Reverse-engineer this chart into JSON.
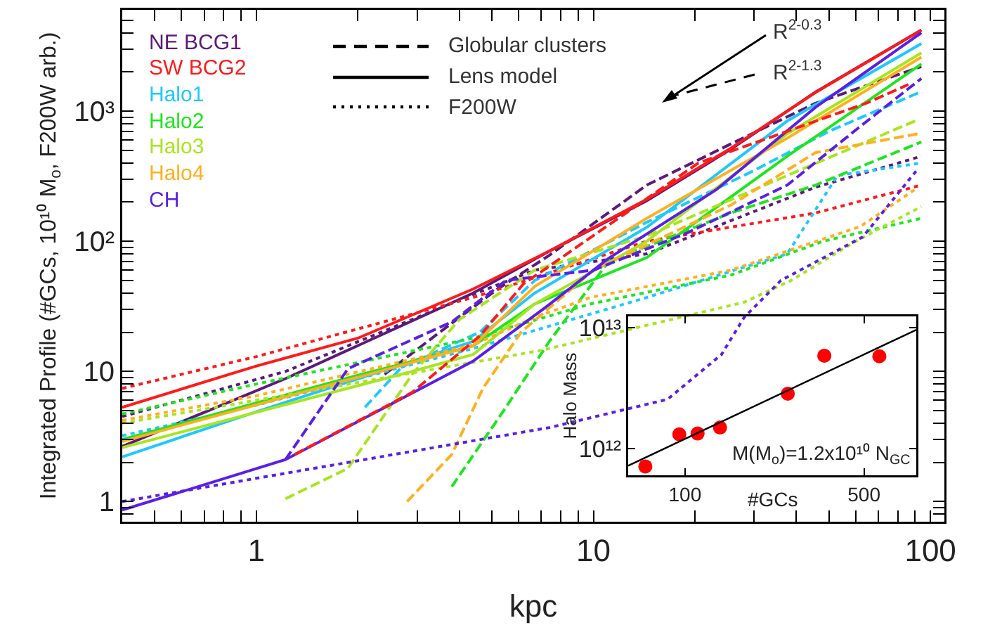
{
  "chart_data": [
    {
      "type": "line",
      "xlabel": "kpc",
      "ylabel": "Integrated Profile (#GCs, 10¹⁰ M$_{o}$, F200W arb.)",
      "log": "xy",
      "grid": false,
      "legend": "top left",
      "xlim": [
        0.4,
        110
      ],
      "ylim": [
        0.7,
        6000
      ],
      "xticks": [
        {
          "value": 0.4,
          "label": null
        },
        {
          "value": 0.5,
          "label": null
        },
        {
          "value": 0.6,
          "label": null
        },
        {
          "value": 0.7,
          "label": null
        },
        {
          "value": 0.8,
          "label": null
        },
        {
          "value": 0.9,
          "label": null
        },
        1,
        {
          "value": 2,
          "label": null
        },
        {
          "value": 3,
          "label": null
        },
        {
          "value": 4,
          "label": null
        },
        {
          "value": 5,
          "label": null
        },
        {
          "value": 6,
          "label": null
        },
        {
          "value": 7,
          "label": null
        },
        {
          "value": 8,
          "label": null
        },
        {
          "value": 9,
          "label": null
        },
        10,
        {
          "value": 20,
          "label": null
        },
        {
          "value": 30,
          "label": null
        },
        {
          "value": 40,
          "label": null
        },
        {
          "value": 50,
          "label": null
        },
        {
          "value": 60,
          "label": null
        },
        {
          "value": 70,
          "label": null
        },
        {
          "value": 80,
          "label": null
        },
        {
          "value": 90,
          "label": null
        },
        100
      ],
      "yticks": [
        {
          "value": 0.8,
          "label": null
        },
        {
          "value": 0.9,
          "label": null
        },
        1,
        {
          "value": 2,
          "label": null
        },
        {
          "value": 3,
          "label": null
        },
        {
          "value": 4,
          "label": null
        },
        {
          "value": 5,
          "label": null
        },
        {
          "value": 6,
          "label": null
        },
        {
          "value": 7,
          "label": null
        },
        {
          "value": 8,
          "label": null
        },
        {
          "value": 9,
          "label": null
        },
        10,
        {
          "value": 20,
          "label": null
        },
        {
          "value": 30,
          "label": null
        },
        {
          "value": 40,
          "label": null
        },
        {
          "value": 50,
          "label": null
        },
        {
          "value": 60,
          "label": null
        },
        {
          "value": 70,
          "label": null
        },
        {
          "value": 80,
          "label": null
        },
        {
          "value": 90,
          "label": null
        },
        {
          "value": 100,
          "label": "10²"
        },
        {
          "value": 200,
          "label": null
        },
        {
          "value": 300,
          "label": null
        },
        {
          "value": 400,
          "label": null
        },
        {
          "value": 500,
          "label": null
        },
        {
          "value": 600,
          "label": null
        },
        {
          "value": 700,
          "label": null
        },
        {
          "value": 800,
          "label": null
        },
        {
          "value": 900,
          "label": null
        },
        {
          "value": 1000,
          "label": "10³"
        },
        {
          "value": 2000,
          "label": null
        },
        {
          "value": 3000,
          "label": null
        },
        {
          "value": 4000,
          "label": null
        },
        {
          "value": 5000,
          "label": null
        }
      ],
      "annotations": [
        "Globular clusters",
        "Lens model",
        "F200W",
        "R$^{2-0.3}$",
        "R$^{2-1.3}$"
      ],
      "series": [
        {
          "color": "#5c1a7a",
          "line_style": "dashed",
          "x": [
            2.4,
            3.5,
            5.2,
            7.4,
            14.4,
            25.6,
            45.6,
            94
          ],
          "values": [
            9.5,
            20,
            43,
            78,
            270,
            560,
            1150,
            2200
          ]
        },
        {
          "name": "NE BCG1",
          "color": "#5c1a7a",
          "line_style": "solid",
          "x": [
            0.4,
            1.22,
            4.4,
            7.4,
            14.4,
            25.6,
            45.6,
            94
          ],
          "values": [
            2.65,
            8.8,
            40,
            84,
            205,
            510,
            1400,
            4200
          ]
        },
        {
          "color": "#5c1a7a",
          "line_style": "dotted",
          "x": [
            0.4,
            1.22,
            4.4,
            6.7,
            14.4,
            45.6,
            94
          ],
          "values": [
            4.5,
            10,
            39,
            60,
            80,
            260,
            450
          ]
        },
        {
          "name": "SW BCG2",
          "color": "#ff1a1a",
          "line_style": "solid",
          "x": [
            0.4,
            1,
            2,
            4.4,
            7.4,
            14.4,
            25.6,
            45.6,
            94
          ],
          "values": [
            5.3,
            11,
            18,
            43,
            84,
            210,
            520,
            1390,
            4200
          ]
        },
        {
          "color": "#ff1a1a",
          "line_style": "dotted",
          "x": [
            0.4,
            1,
            4.4,
            14.4,
            45.6,
            94
          ],
          "values": [
            7.4,
            13,
            37,
            100,
            165,
            270
          ]
        },
        {
          "color": "#1fc8ff",
          "line_style": "dashed",
          "x": [
            2.1,
            2.7,
            4.6,
            6.7,
            14.4,
            30,
            50,
            92
          ],
          "values": [
            5.3,
            10.8,
            20,
            50,
            140,
            350,
            700,
            1380
          ]
        },
        {
          "name": "Halo1",
          "color": "#1fc8ff",
          "line_style": "solid",
          "x": [
            0.4,
            1,
            4.4,
            6.7,
            14.4,
            37.6,
            94
          ],
          "values": [
            2.2,
            4.9,
            17,
            40,
            128,
            840,
            3300
          ]
        },
        {
          "color": "#1fc8ff",
          "line_style": "dotted",
          "x": [
            0.4,
            1,
            4.4,
            14.4,
            37.6,
            53,
            94
          ],
          "values": [
            3.2,
            5.5,
            15,
            37,
            80,
            320,
            400
          ]
        },
        {
          "color": "#1ee61e",
          "line_style": "dashed",
          "x": [
            3.8,
            5.5,
            7.4,
            11.1,
            25.6,
            45.6,
            94
          ],
          "values": [
            1.3,
            5.3,
            17,
            70,
            165,
            270,
            580
          ]
        },
        {
          "name": "Halo2",
          "color": "#1ee61e",
          "line_style": "solid",
          "x": [
            0.4,
            2.05,
            4.4,
            6.7,
            14.4,
            37.6,
            94
          ],
          "values": [
            3.0,
            9.5,
            15.7,
            33,
            75,
            450,
            2300
          ]
        },
        {
          "color": "#1ee61e",
          "line_style": "dotted",
          "x": [
            0.4,
            1,
            4.4,
            9.8,
            25.6,
            48,
            94
          ],
          "values": [
            4.7,
            8,
            18,
            33,
            55,
            100,
            150
          ]
        },
        {
          "color": "#a6e61e",
          "line_style": "dashed",
          "x": [
            1.22,
            1.87,
            2.9,
            4,
            6.7,
            14.4,
            37.6,
            92
          ],
          "values": [
            1.05,
            1.8,
            9.5,
            25,
            60,
            110,
            320,
            860
          ]
        },
        {
          "name": "Halo3",
          "color": "#a6e61e",
          "line_style": "solid",
          "x": [
            0.4,
            2.9,
            4.4,
            6.7,
            14.4,
            37.6,
            94
          ],
          "values": [
            2.6,
            10,
            13.5,
            33,
            100,
            670,
            2800
          ]
        },
        {
          "color": "#a6e61e",
          "line_style": "dotted",
          "x": [
            0.4,
            1,
            7,
            28,
            38.6,
            60,
            94
          ],
          "values": [
            4,
            6,
            14.5,
            34,
            50,
            100,
            185
          ]
        },
        {
          "color": "#ffb01f",
          "line_style": "dashed",
          "x": [
            2.8,
            3.8,
            4.7,
            6.1,
            10,
            25.6,
            45.6,
            92
          ],
          "values": [
            1.0,
            2.3,
            7.4,
            20,
            60,
            190,
            480,
            670
          ]
        },
        {
          "name": "Halo4",
          "color": "#ffb01f",
          "line_style": "solid",
          "x": [
            0.4,
            4.4,
            6.7,
            14.4,
            37.6,
            94
          ],
          "values": [
            2.9,
            15.7,
            45,
            150,
            620,
            2600
          ]
        },
        {
          "color": "#ffb01f",
          "line_style": "dotted",
          "x": [
            0.4,
            1,
            4.4,
            6.7,
            9.8,
            25.6,
            62,
            92
          ],
          "values": [
            4.2,
            6.5,
            16,
            26,
            37,
            60,
            130,
            260
          ]
        },
        {
          "color": "#5a1fe6",
          "line_style": "dashed",
          "x": [
            1.22,
            1.87,
            3.8,
            5.5,
            10,
            19,
            37.6,
            61,
            94
          ],
          "values": [
            2.1,
            10.5,
            24,
            50,
            60,
            116,
            270,
            740,
            1780
          ]
        },
        {
          "name": "CH",
          "color": "#5a1fe6",
          "line_style": "solid",
          "x": [
            0.4,
            1.22,
            4.4,
            7.2,
            11.1,
            23.2,
            45.6,
            94
          ],
          "values": [
            0.86,
            2.1,
            12,
            31,
            74,
            250,
            1070,
            4000
          ]
        },
        {
          "color": "#5a1fe6",
          "line_style": "dotted",
          "x": [
            0.4,
            7.4,
            16.6,
            24,
            28,
            36,
            63,
            91
          ],
          "values": [
            1.0,
            3.7,
            6.1,
            13.5,
            26,
            50,
            108,
            350
          ]
        },
        {
          "color": "#ff1a1a",
          "line_style": "dashed",
          "x": [
            1.3,
            2.9,
            4.6,
            6.2,
            20.5,
            65,
            86
          ],
          "values": [
            2.3,
            6.9,
            18.7,
            47,
            400,
            1160,
            1600
          ]
        }
      ]
    },
    {
      "type": "scatter",
      "xlabel": "#GCs",
      "ylabel": "Halo Mass",
      "log": "xy",
      "grid": false,
      "xlim": [
        60,
        800
      ],
      "ylim": [
        600000000000.0,
        12400000000000.0
      ],
      "xticks": [
        100,
        500
      ],
      "yticks": [
        {
          "value": 1000000000000.0,
          "label": "10¹²"
        },
        {
          "value": 10000000000000.0,
          "label": "10¹³"
        }
      ],
      "annotations": [
        "M(M$_{o}$)=1.2x10¹⁰ N$_{GC}$"
      ],
      "series": [
        {
          "color": "#ff0000",
          "marker": "circle",
          "x": [
            70,
            95,
            112,
            137,
            252,
            350,
            574
          ],
          "values": [
            710000000000.0,
            1310000000000.0,
            1330000000000.0,
            1490000000000.0,
            2840000000000.0,
            5860000000000.0,
            5800000000000.0
          ]
        },
        {
          "type": "line",
          "color": "#000000",
          "x": [
            60,
            800
          ],
          "values": [
            720000000000.0,
            9600000000000.0
          ]
        }
      ]
    }
  ]
}
